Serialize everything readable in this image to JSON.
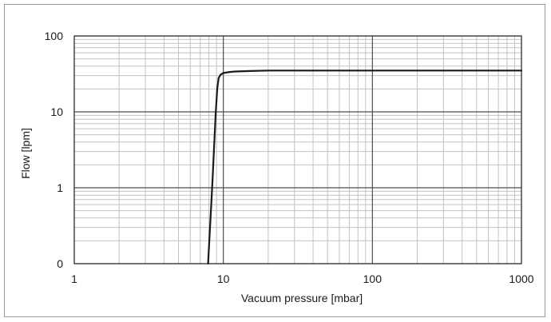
{
  "chart_data": {
    "type": "line",
    "xlabel": "Vacuum pressure [mbar]",
    "ylabel": "Flow [lpm]",
    "x_scale": "log",
    "y_scale": "log",
    "xlim": [
      1,
      1000
    ],
    "ylim": [
      0.1,
      100
    ],
    "x_ticks": [
      {
        "value": 1,
        "label": "1"
      },
      {
        "value": 10,
        "label": "10"
      },
      {
        "value": 100,
        "label": "100"
      },
      {
        "value": 1000,
        "label": "1000"
      }
    ],
    "y_ticks": [
      {
        "value": 0.1,
        "label": "0"
      },
      {
        "value": 1,
        "label": "1"
      },
      {
        "value": 10,
        "label": "10"
      },
      {
        "value": 100,
        "label": "100"
      }
    ],
    "grid": "on (major and minor, log)",
    "line_color": "#1a1a1a",
    "grid_major_color": "#4d4d4d",
    "grid_minor_color": "#c2c2c2",
    "series": [
      {
        "x": [
          7.9,
          8.1,
          8.3,
          8.5,
          8.7,
          8.9,
          9.1,
          9.3,
          9.6,
          10,
          11,
          12,
          15,
          20,
          30,
          50,
          100,
          200,
          500,
          1000
        ],
        "y": [
          0.1,
          0.25,
          0.6,
          1.5,
          4,
          10,
          20,
          28,
          31,
          32.5,
          33.5,
          34,
          34.5,
          35,
          35,
          35,
          35,
          35,
          35,
          35
        ]
      }
    ]
  }
}
